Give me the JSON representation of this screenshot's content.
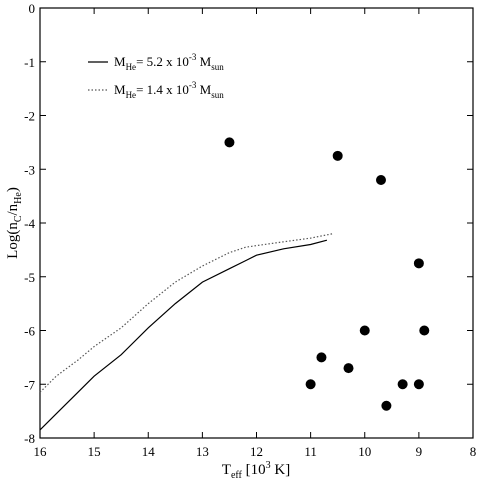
{
  "chart_data": {
    "type": "scatter",
    "title": "",
    "xlabel": {
      "main": "T",
      "sub": "eff",
      "rest": " [10",
      "sup": "3",
      "tail": " K]"
    },
    "ylabel": {
      "main": "Log(n",
      "sub1": "C",
      "mid": "/n",
      "sub2": "He",
      "tail": ")"
    },
    "xlim": [
      16,
      8
    ],
    "ylim": [
      -8,
      0
    ],
    "x_ticks": [
      16,
      15,
      14,
      13,
      12,
      11,
      10,
      9,
      8
    ],
    "y_ticks": [
      0,
      -1,
      -2,
      -3,
      -4,
      -5,
      -6,
      -7,
      -8
    ],
    "grid": false,
    "legend_position": "top-left",
    "series": [
      {
        "name": {
          "pre": "M",
          "sub": "He",
          "mid": "= 5.2 x 10",
          "sup": "-3",
          "post": " M",
          "sub2": "sun"
        },
        "style": "solid",
        "color": "#000000",
        "points": [
          [
            16.0,
            -7.85
          ],
          [
            15.7,
            -7.55
          ],
          [
            15.3,
            -7.15
          ],
          [
            15.0,
            -6.85
          ],
          [
            14.5,
            -6.45
          ],
          [
            14.0,
            -5.95
          ],
          [
            13.5,
            -5.5
          ],
          [
            13.0,
            -5.1
          ],
          [
            12.5,
            -4.85
          ],
          [
            12.2,
            -4.7
          ],
          [
            12.0,
            -4.6
          ],
          [
            11.5,
            -4.48
          ],
          [
            11.0,
            -4.4
          ],
          [
            10.7,
            -4.32
          ]
        ]
      },
      {
        "name": {
          "pre": "M",
          "sub": "He",
          "mid": "= 1.4 x 10",
          "sup": "-3",
          "post": " M",
          "sub2": "sun"
        },
        "style": "dotted",
        "color": "#555555",
        "points": [
          [
            16.0,
            -7.15
          ],
          [
            15.7,
            -6.85
          ],
          [
            15.3,
            -6.55
          ],
          [
            15.0,
            -6.3
          ],
          [
            14.5,
            -5.95
          ],
          [
            14.0,
            -5.5
          ],
          [
            13.5,
            -5.1
          ],
          [
            13.0,
            -4.8
          ],
          [
            12.5,
            -4.55
          ],
          [
            12.2,
            -4.45
          ],
          [
            12.0,
            -4.42
          ],
          [
            11.5,
            -4.35
          ],
          [
            11.0,
            -4.28
          ],
          [
            10.6,
            -4.2
          ]
        ]
      },
      {
        "name": "",
        "style": "marker",
        "color": "#000000",
        "points": [
          [
            12.5,
            -2.5
          ],
          [
            10.5,
            -2.75
          ],
          [
            9.7,
            -3.2
          ],
          [
            9.0,
            -4.75
          ],
          [
            10.0,
            -6.0
          ],
          [
            8.9,
            -6.0
          ],
          [
            10.8,
            -6.5
          ],
          [
            10.3,
            -6.7
          ],
          [
            11.0,
            -7.0
          ],
          [
            9.3,
            -7.0
          ],
          [
            9.0,
            -7.0
          ],
          [
            9.6,
            -7.4
          ]
        ]
      }
    ]
  }
}
